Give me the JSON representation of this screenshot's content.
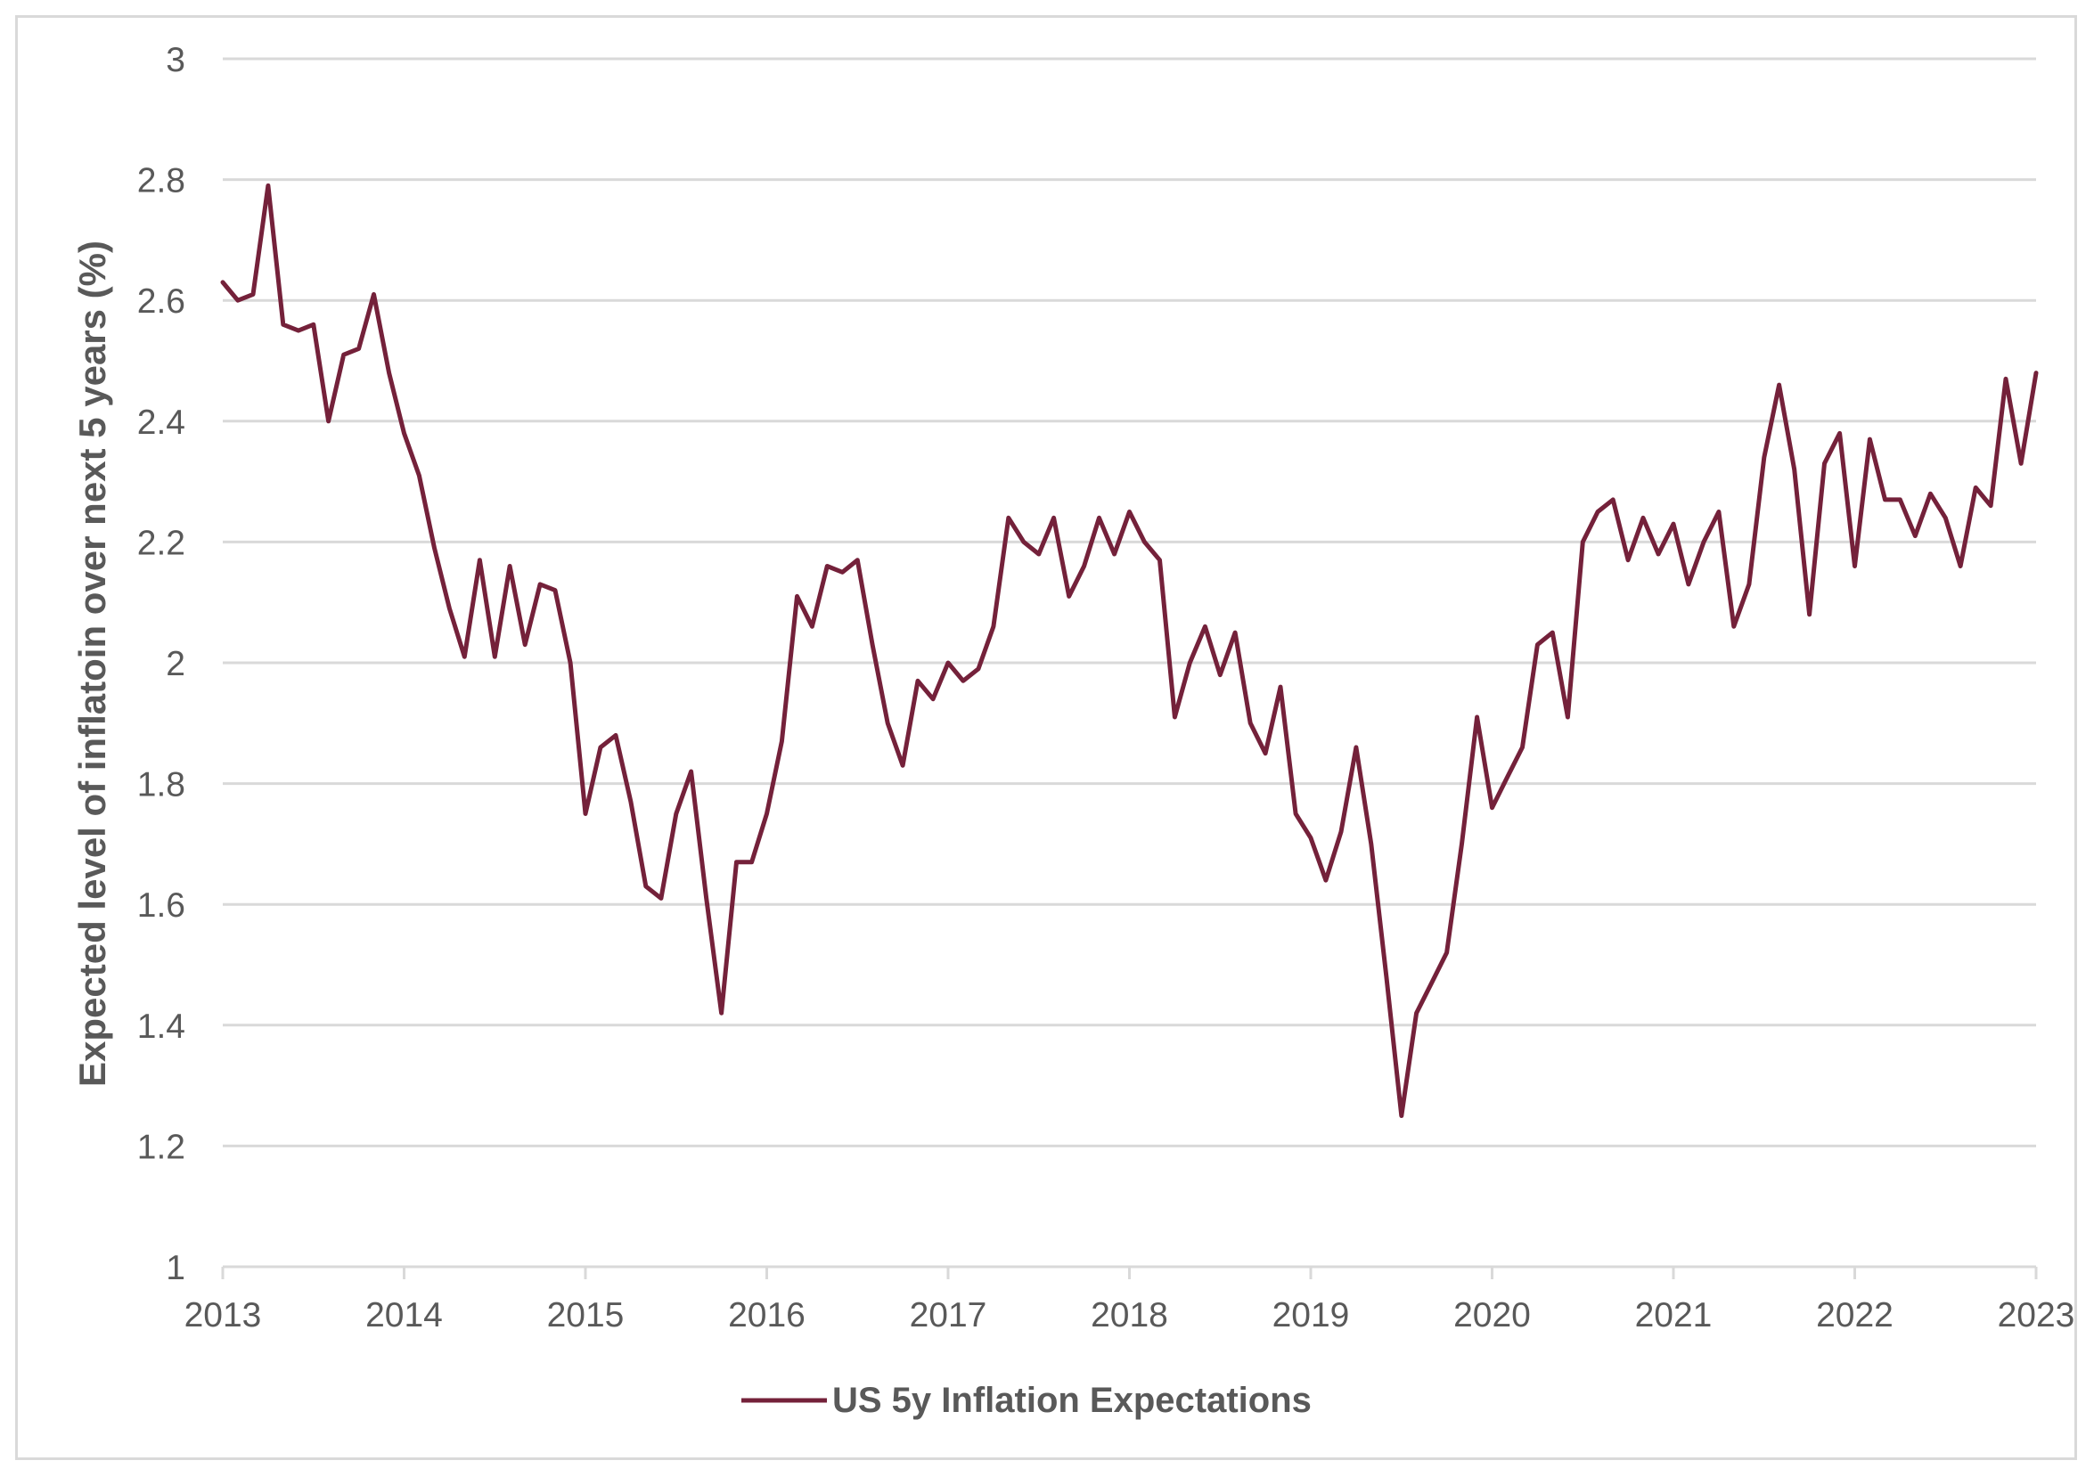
{
  "chart_data": {
    "type": "line",
    "title": "",
    "xlabel": "",
    "ylabel": "Expected level of inflatoin over next 5 years (%)",
    "ylim": [
      1,
      3
    ],
    "yticks": [
      "1",
      "1.2",
      "1.4",
      "1.6",
      "1.8",
      "2",
      "2.2",
      "2.4",
      "2.6",
      "2.8",
      "3"
    ],
    "xlim": [
      2013,
      2023
    ],
    "xticks": [
      "2013",
      "2014",
      "2015",
      "2016",
      "2017",
      "2018",
      "2019",
      "2020",
      "2021",
      "2022",
      "2023"
    ],
    "grid": true,
    "legend_position": "bottom",
    "line_color": "#74213a",
    "series": [
      {
        "name": "US 5y Inflation Expectations",
        "x": [
          2013.0,
          2013.083,
          2013.167,
          2013.25,
          2013.333,
          2013.417,
          2013.5,
          2013.583,
          2013.667,
          2013.75,
          2013.833,
          2013.917,
          2014.0,
          2014.083,
          2014.167,
          2014.25,
          2014.333,
          2014.417,
          2014.5,
          2014.583,
          2014.667,
          2014.75,
          2014.833,
          2014.917,
          2015.0,
          2015.083,
          2015.167,
          2015.25,
          2015.333,
          2015.417,
          2015.5,
          2015.583,
          2015.667,
          2015.75,
          2015.833,
          2015.917,
          2016.0,
          2016.083,
          2016.167,
          2016.25,
          2016.333,
          2016.417,
          2016.5,
          2016.583,
          2016.667,
          2016.75,
          2016.833,
          2016.917,
          2017.0,
          2017.083,
          2017.167,
          2017.25,
          2017.333,
          2017.417,
          2017.5,
          2017.583,
          2017.667,
          2017.75,
          2017.833,
          2017.917,
          2018.0,
          2018.083,
          2018.167,
          2018.25,
          2018.333,
          2018.417,
          2018.5,
          2018.583,
          2018.667,
          2018.75,
          2018.833,
          2018.917,
          2019.0,
          2019.083,
          2019.167,
          2019.25,
          2019.333,
          2019.417,
          2019.5,
          2019.583,
          2019.667,
          2019.75,
          2019.833,
          2019.917,
          2020.0,
          2020.083,
          2020.167,
          2020.25,
          2020.333,
          2020.417,
          2020.5,
          2020.583,
          2020.667,
          2020.75,
          2020.833,
          2020.917,
          2021.0,
          2021.083,
          2021.167,
          2021.25,
          2021.333,
          2021.417,
          2021.5,
          2021.583,
          2021.667,
          2021.75,
          2021.833,
          2021.917,
          2022.0,
          2022.083,
          2022.167,
          2022.25,
          2022.333,
          2022.417,
          2022.5,
          2022.583,
          2022.667,
          2022.75,
          2022.833,
          2022.917
        ],
        "values": [
          2.63,
          2.6,
          2.61,
          2.79,
          2.56,
          2.55,
          2.56,
          2.4,
          2.51,
          2.52,
          2.61,
          2.48,
          2.38,
          2.31,
          2.19,
          2.09,
          2.01,
          2.17,
          2.01,
          2.16,
          2.03,
          2.13,
          2.12,
          2.0,
          1.75,
          1.86,
          1.88,
          1.77,
          1.63,
          1.61,
          1.75,
          1.82,
          1.61,
          1.42,
          1.67,
          1.67,
          1.75,
          1.87,
          2.11,
          2.06,
          2.16,
          2.15,
          2.17,
          2.03,
          1.9,
          1.83,
          1.97,
          1.94,
          2.0,
          1.97,
          1.99,
          2.06,
          2.24,
          2.2,
          2.18,
          2.24,
          2.11,
          2.16,
          2.24,
          2.18,
          2.25,
          2.2,
          2.17,
          1.91,
          2.0,
          2.06,
          1.98,
          2.05,
          1.9,
          1.85,
          1.96,
          1.75,
          1.71,
          1.64,
          1.72,
          1.86,
          1.7,
          1.48,
          1.25,
          1.42,
          1.47,
          1.52,
          1.7,
          1.91,
          1.76,
          1.81,
          1.86,
          2.03,
          2.05,
          1.91,
          2.2,
          2.25,
          2.27,
          2.17,
          2.24,
          2.18,
          2.23,
          2.13,
          2.2,
          2.25,
          2.06,
          2.13,
          2.34,
          2.46,
          2.32,
          2.08,
          2.33,
          2.38,
          2.16,
          2.37,
          2.27,
          2.27,
          2.21,
          2.28,
          2.24,
          2.16,
          2.29,
          2.26,
          2.47,
          2.33
        ]
      }
    ],
    "series_last_point": {
      "x": 2023.0,
      "value": 2.48
    }
  }
}
